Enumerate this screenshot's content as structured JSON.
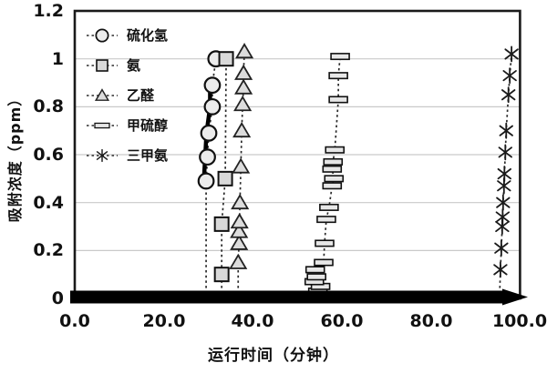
{
  "figure": {
    "background": "#ffffff",
    "description": "Breakthrough curves of adsorbed odor gases vs running time"
  },
  "axes": {
    "y_title": "吸附浓度（ppm）",
    "x_title": "运行时间（分钟）",
    "y_labels": [
      "1.2",
      "1",
      "0.8",
      "0.6",
      "0.4",
      "0.2",
      "0"
    ],
    "x_labels": [
      "0.0",
      "20.0",
      "40.0",
      "60.0",
      "80.0",
      "100.0"
    ]
  },
  "legend": {
    "items": [
      {
        "label": "硫化氢",
        "marker": "circle"
      },
      {
        "label": "氨",
        "marker": "square"
      },
      {
        "label": "乙醛",
        "marker": "triangle"
      },
      {
        "label": "甲硫醇",
        "marker": "bar"
      },
      {
        "label": "三甲氨",
        "marker": "asterisk"
      }
    ]
  },
  "colors": {
    "frame": "#1a1a1a",
    "grid": "#c9c9c9",
    "line": "#2a2a2a",
    "marker_fill": "#e7e7e7",
    "marker_stroke": "#111111",
    "band": "#000000",
    "text": "#111111"
  },
  "chart_data": {
    "type": "scatter",
    "title": "",
    "xlabel": "运行时间（分钟）",
    "ylabel": "吸附浓度（ppm）",
    "xlim": [
      0,
      100
    ],
    "ylim": [
      0,
      1.2
    ],
    "x_ticks": [
      0,
      20,
      40,
      60,
      80,
      100
    ],
    "y_ticks": [
      0,
      0.2,
      0.4,
      0.6,
      0.8,
      1,
      1.2
    ],
    "grid": "horizontal-light",
    "legend_position": "top-left-inside",
    "line_style": "dashed-vertical-breakthrough",
    "zero_band": {
      "x_start": -1,
      "x_end": 101.5,
      "v": 0,
      "style": "thick solid black band along y=0 ending in right-pointing arrowhead"
    },
    "series": [
      {
        "name": "硫化氢",
        "marker": "circle",
        "points": [
          [
            29.5,
            0
          ],
          [
            29.5,
            0.49
          ],
          [
            29.8,
            0.59
          ],
          [
            30.1,
            0.69
          ],
          [
            30.9,
            0.8
          ],
          [
            30.9,
            0.89
          ],
          [
            31.7,
            1.0
          ]
        ]
      },
      {
        "name": "氨",
        "marker": "square",
        "points": [
          [
            33.0,
            0
          ],
          [
            33.0,
            0.1
          ],
          [
            33.0,
            0.31
          ],
          [
            33.8,
            0.5
          ],
          [
            34.0,
            1.0
          ]
        ]
      },
      {
        "name": "乙醛",
        "marker": "triangle",
        "points": [
          [
            36.7,
            0
          ],
          [
            36.7,
            0.15
          ],
          [
            36.9,
            0.23
          ],
          [
            36.9,
            0.28
          ],
          [
            37.0,
            0.32
          ],
          [
            37.1,
            0.4
          ],
          [
            37.3,
            0.55
          ],
          [
            37.5,
            0.7
          ],
          [
            37.7,
            0.81
          ],
          [
            37.9,
            0.88
          ],
          [
            37.9,
            0.94
          ],
          [
            38.1,
            1.03
          ]
        ]
      },
      {
        "name": "甲硫醇",
        "marker": "bar",
        "points": [
          [
            55.5,
            0
          ],
          [
            54.6,
            0.03
          ],
          [
            55.2,
            0.05
          ],
          [
            53.8,
            0.07
          ],
          [
            54.3,
            0.09
          ],
          [
            54.0,
            0.12
          ],
          [
            55.9,
            0.15
          ],
          [
            56.1,
            0.23
          ],
          [
            56.5,
            0.33
          ],
          [
            57.1,
            0.38
          ],
          [
            57.8,
            0.47
          ],
          [
            58.2,
            0.5
          ],
          [
            57.8,
            0.54
          ],
          [
            58.0,
            0.57
          ],
          [
            58.4,
            0.62
          ],
          [
            59.2,
            0.83
          ],
          [
            59.2,
            0.93
          ],
          [
            59.6,
            1.01
          ]
        ]
      },
      {
        "name": "三甲氨",
        "marker": "asterisk",
        "points": [
          [
            95.4,
            0
          ],
          [
            95.6,
            0.12
          ],
          [
            95.8,
            0.21
          ],
          [
            96.0,
            0.3
          ],
          [
            96.1,
            0.34
          ],
          [
            96.2,
            0.4
          ],
          [
            96.4,
            0.47
          ],
          [
            96.5,
            0.52
          ],
          [
            96.7,
            0.61
          ],
          [
            96.9,
            0.7
          ],
          [
            97.4,
            0.85
          ],
          [
            97.7,
            0.93
          ],
          [
            98.1,
            1.02
          ]
        ]
      }
    ]
  }
}
